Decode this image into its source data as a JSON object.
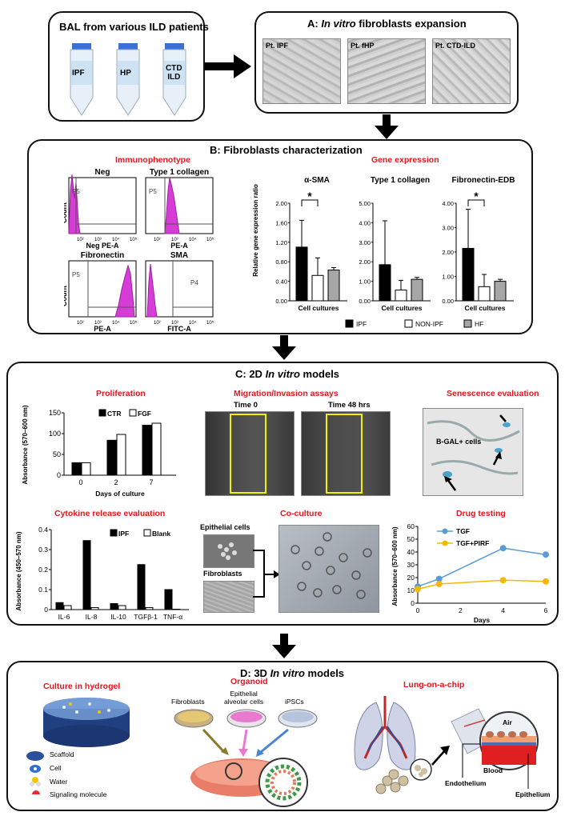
{
  "top": {
    "bal_title": "BAL from various ILD patients",
    "tubes": [
      "IPF",
      "HP",
      "CTD\nILD"
    ],
    "panel_a_title": "A: In vitro fibroblasts expansion",
    "panel_a_prefix": "A: ",
    "panel_a_italic": "In vitro",
    "panel_a_suffix": " fibroblasts expansion",
    "cultures": [
      "Pt. IPF",
      "Pt. fHP",
      "Pt. CTD-ILD"
    ]
  },
  "panel_b": {
    "title": "B: Fibroblasts characterization",
    "immuno_title": "Immunophenotype",
    "gene_title": "Gene expression",
    "flow": [
      {
        "title": "Neg",
        "gate": "P5",
        "xlabel": "Neg PE-A",
        "ylabel": "Count"
      },
      {
        "title": "Type 1 collagen",
        "gate": "P5",
        "xlabel": "PE-A",
        "ylabel": "Count"
      },
      {
        "title": "Fibronectin",
        "gate": "P5",
        "xlabel": "PE-A",
        "ylabel": "Count"
      },
      {
        "title": "SMA",
        "gate": "P4",
        "xlabel": "FITC-A",
        "ylabel": "Count"
      }
    ],
    "flow_ticks": [
      "10²",
      "10³",
      "10⁴",
      "10⁵"
    ],
    "ylabel": "Relative gene expression ratio",
    "xlabel": "Cell cultures",
    "star": "*",
    "legend": [
      "IPF",
      "NON-IPF",
      "HF"
    ]
  },
  "panel_c": {
    "title_prefix": "C: 2D ",
    "title_italic": "In vitro",
    "title_suffix": " models",
    "proliferation_title": "Proliferation",
    "migration_title": "Migration/Invasion assays",
    "time0": "Time 0",
    "time48": "Time 48 hrs",
    "senescence_title": "Senescence evaluation",
    "bgal_label": "B-GAL+ cells",
    "cytokine_title": "Cytokine release evaluation",
    "coculture_title": "Co-culture",
    "epithelial": "Epithelial cells",
    "fibroblasts": "Fibroblasts",
    "drug_title": "Drug testing"
  },
  "panel_d": {
    "title_prefix": "D: 3D ",
    "title_italic": "In vitro",
    "title_suffix": " models",
    "hydrogel_title": "Culture in hydrogel",
    "hydrogel_legend": [
      "Scaffold",
      "Cell",
      "Water",
      "Signaling molecule"
    ],
    "organoid_title": "Organoid",
    "organoid_labels": [
      "Fibroblasts",
      "Epithelial\nalveolar cells",
      "iPSCs"
    ],
    "organoid_l1": "Fibroblasts",
    "organoid_l2a": "Epithelial",
    "organoid_l2b": "alveolar cells",
    "organoid_l3": "iPSCs",
    "chip_title": "Lung-on-a-chip",
    "chip_labels": {
      "air": "Air",
      "blood": "Blood",
      "epithelium": "Epithelium",
      "endothelium": "Endothelium"
    }
  },
  "colors": {
    "accent_red": "#e0181b",
    "magenta": "#d63cd6",
    "tgf": "#5b9bd5",
    "pirf": "#f5b800"
  },
  "chart_data": [
    {
      "type": "bar",
      "title": "α-SMA",
      "categories": [
        "Cell cultures"
      ],
      "series": [
        {
          "name": "IPF",
          "values": [
            1.1
          ],
          "error": [
            0.55
          ]
        },
        {
          "name": "NON-IPF",
          "values": [
            0.52
          ],
          "error": [
            0.36
          ]
        },
        {
          "name": "HF",
          "values": [
            0.63
          ],
          "error": [
            0.05
          ]
        }
      ],
      "ylim": [
        0,
        2
      ],
      "yticks": [
        "0.00",
        "0.40",
        "0.80",
        "1.20",
        "1.60",
        "2.00"
      ],
      "xlabel": "Cell cultures",
      "ylabel": "Relative gene expression ratio"
    },
    {
      "type": "bar",
      "title": "Type 1 collagen",
      "categories": [
        "Cell cultures"
      ],
      "series": [
        {
          "name": "IPF",
          "values": [
            1.85
          ],
          "error": [
            2.25
          ]
        },
        {
          "name": "NON-IPF",
          "values": [
            0.55
          ],
          "error": [
            0.5
          ]
        },
        {
          "name": "HF",
          "values": [
            1.1
          ],
          "error": [
            0.1
          ]
        }
      ],
      "ylim": [
        0,
        5
      ],
      "yticks": [
        "0.00",
        "1.00",
        "2.00",
        "3.00",
        "4.00",
        "5.00"
      ],
      "xlabel": "Cell cultures"
    },
    {
      "type": "bar",
      "title": "Fibronectin-EDB",
      "categories": [
        "Cell cultures"
      ],
      "series": [
        {
          "name": "IPF",
          "values": [
            2.15
          ],
          "error": [
            1.6
          ]
        },
        {
          "name": "NON-IPF",
          "values": [
            0.58
          ],
          "error": [
            0.5
          ]
        },
        {
          "name": "HF",
          "values": [
            0.8
          ],
          "error": [
            0.08
          ]
        }
      ],
      "ylim": [
        0,
        4
      ],
      "yticks": [
        "0.00",
        "1.00",
        "2.00",
        "3.00",
        "4.00"
      ],
      "xlabel": "Cell cultures"
    },
    {
      "type": "bar",
      "title": "Proliferation",
      "categories": [
        "0",
        "2",
        "7"
      ],
      "series": [
        {
          "name": "CTR",
          "values": [
            30,
            84,
            120
          ]
        },
        {
          "name": "FGF",
          "values": [
            30,
            98,
            125
          ]
        }
      ],
      "ylim": [
        0,
        150
      ],
      "yticks": [
        "0",
        "50",
        "100",
        "150"
      ],
      "xlabel": "Days of culture",
      "ylabel": "Absorbance (570–600 nm)"
    },
    {
      "type": "bar",
      "title": "Cytokine release evaluation",
      "categories": [
        "IL-6",
        "IL-8",
        "IL-10",
        "TGFβ-1",
        "TNF-α"
      ],
      "series": [
        {
          "name": "IPF",
          "values": [
            0.035,
            0.345,
            0.03,
            0.225,
            0.1
          ]
        },
        {
          "name": "Blank",
          "values": [
            0.02,
            0.01,
            0.02,
            0.01,
            0.0
          ]
        }
      ],
      "ylim": [
        0,
        0.4
      ],
      "yticks": [
        "0",
        "0.1",
        "0.2",
        "0.3",
        "0.4"
      ],
      "ylabel": "Absorbance (450–570 nm)"
    },
    {
      "type": "line",
      "title": "Drug testing",
      "x": [
        0,
        1,
        4,
        6
      ],
      "series": [
        {
          "name": "TGF",
          "values": [
            13,
            19,
            43,
            38
          ]
        },
        {
          "name": "TGF+PIRF",
          "values": [
            11,
            15,
            18,
            17
          ]
        }
      ],
      "xlim": [
        0,
        6
      ],
      "ylim": [
        0,
        60
      ],
      "xticks": [
        "0",
        "2",
        "4",
        "6"
      ],
      "yticks": [
        "0",
        "10",
        "20",
        "30",
        "40",
        "50",
        "60"
      ],
      "xlabel": "Days",
      "ylabel": "Absorbance (570–600 nm)"
    }
  ]
}
